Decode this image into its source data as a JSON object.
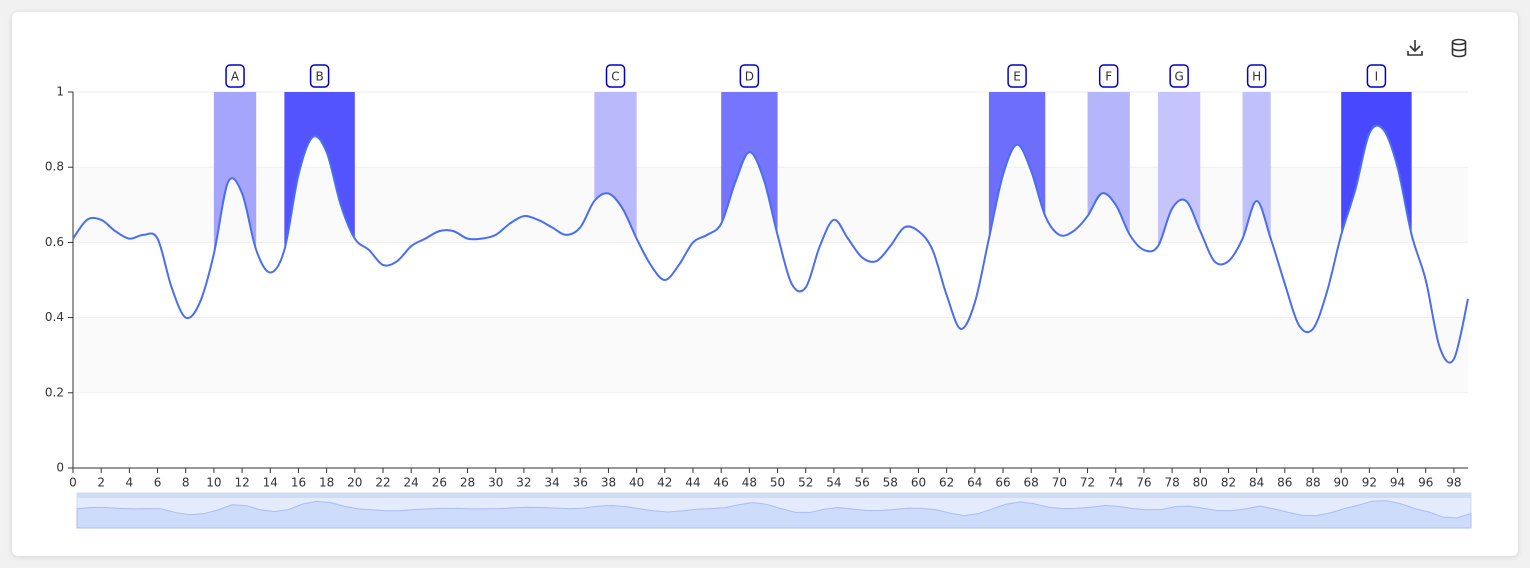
{
  "chart_data": {
    "type": "line",
    "color": "#4a6ef0",
    "x": [
      0,
      1,
      2,
      3,
      4,
      5,
      6,
      7,
      8,
      9,
      10,
      11,
      12,
      13,
      14,
      15,
      16,
      17,
      18,
      19,
      20,
      21,
      22,
      23,
      24,
      25,
      26,
      27,
      28,
      29,
      30,
      31,
      32,
      33,
      34,
      35,
      36,
      37,
      38,
      39,
      40,
      41,
      42,
      43,
      44,
      45,
      46,
      47,
      48,
      49,
      50,
      51,
      52,
      53,
      54,
      55,
      56,
      57,
      58,
      59,
      60,
      61,
      62,
      63,
      64,
      65,
      66,
      67,
      68,
      69,
      70,
      71,
      72,
      73,
      74,
      75,
      76,
      77,
      78,
      79,
      80,
      81,
      82,
      83,
      84,
      85,
      86,
      87,
      88,
      89,
      90,
      91,
      92,
      93,
      94,
      95,
      96,
      97,
      98,
      99
    ],
    "values": [
      0.61,
      0.66,
      0.66,
      0.63,
      0.61,
      0.62,
      0.61,
      0.48,
      0.4,
      0.44,
      0.57,
      0.76,
      0.73,
      0.58,
      0.52,
      0.58,
      0.78,
      0.88,
      0.84,
      0.7,
      0.61,
      0.58,
      0.54,
      0.55,
      0.59,
      0.61,
      0.63,
      0.63,
      0.61,
      0.61,
      0.62,
      0.65,
      0.67,
      0.66,
      0.64,
      0.62,
      0.64,
      0.71,
      0.73,
      0.69,
      0.61,
      0.54,
      0.5,
      0.54,
      0.6,
      0.62,
      0.65,
      0.76,
      0.84,
      0.77,
      0.62,
      0.49,
      0.48,
      0.59,
      0.66,
      0.61,
      0.56,
      0.55,
      0.59,
      0.64,
      0.63,
      0.58,
      0.46,
      0.37,
      0.44,
      0.61,
      0.78,
      0.86,
      0.79,
      0.67,
      0.62,
      0.63,
      0.67,
      0.73,
      0.7,
      0.62,
      0.58,
      0.59,
      0.69,
      0.71,
      0.63,
      0.55,
      0.55,
      0.61,
      0.71,
      0.61,
      0.49,
      0.38,
      0.37,
      0.47,
      0.62,
      0.74,
      0.89,
      0.9,
      0.8,
      0.62,
      0.5,
      0.32,
      0.29,
      0.45
    ],
    "xlim": [
      0,
      99
    ],
    "xticks": [
      0,
      2,
      4,
      6,
      8,
      10,
      12,
      14,
      16,
      18,
      20,
      22,
      24,
      26,
      28,
      30,
      32,
      34,
      36,
      38,
      40,
      42,
      44,
      46,
      48,
      50,
      52,
      54,
      56,
      58,
      60,
      62,
      64,
      66,
      68,
      70,
      72,
      74,
      76,
      78,
      80,
      82,
      84,
      86,
      88,
      90,
      92,
      94,
      96,
      98
    ],
    "ylim": [
      0,
      1
    ],
    "yticks": [
      0,
      0.2,
      0.4,
      0.6,
      0.8,
      1
    ],
    "grid": true,
    "mark_areas": [
      {
        "label": "A",
        "from": 10,
        "to": 13,
        "color": "#a5a5fb"
      },
      {
        "label": "B",
        "from": 15,
        "to": 20,
        "color": "#5454ff"
      },
      {
        "label": "C",
        "from": 37,
        "to": 40,
        "color": "#b9b9fc"
      },
      {
        "label": "D",
        "from": 46,
        "to": 50,
        "color": "#7575fd"
      },
      {
        "label": "E",
        "from": 65,
        "to": 69,
        "color": "#6e6efd"
      },
      {
        "label": "F",
        "from": 72,
        "to": 75,
        "color": "#b5b5fb"
      },
      {
        "label": "G",
        "from": 77,
        "to": 80,
        "color": "#c5c5fc"
      },
      {
        "label": "H",
        "from": 83,
        "to": 85,
        "color": "#c0c0fc"
      },
      {
        "label": "I",
        "from": 90,
        "to": 95,
        "color": "#4848ff"
      }
    ]
  }
}
